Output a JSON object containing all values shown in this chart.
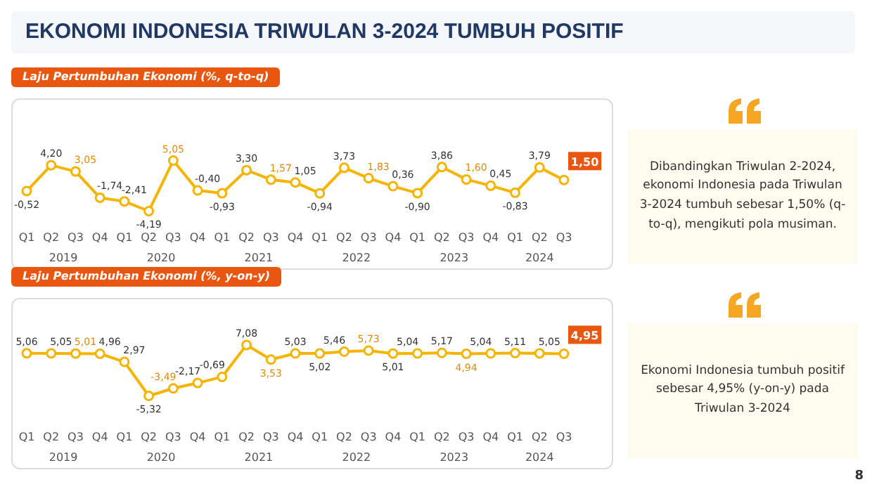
{
  "chart_data": [
    {
      "type": "line",
      "title": "EKONOMI INDONESIA TRIWULAN 3-2024 TUMBUH POSITIF",
      "subtitle": "Laju Pertumbuhan Ekonomi (%, q-to-q)",
      "categories": [
        "Q1",
        "Q2",
        "Q3",
        "Q4",
        "Q1",
        "Q2",
        "Q3",
        "Q4",
        "Q1",
        "Q2",
        "Q3",
        "Q4",
        "Q1",
        "Q2",
        "Q3",
        "Q4",
        "Q1",
        "Q2",
        "Q3",
        "Q4",
        "Q1",
        "Q2",
        "Q3"
      ],
      "series": [
        {
          "color": "#f5b400",
          "values": [
            -0.52,
            4.2,
            3.05,
            -1.74,
            -2.41,
            -4.19,
            5.05,
            -0.4,
            -0.93,
            3.3,
            1.57,
            1.05,
            -0.94,
            3.73,
            1.83,
            0.36,
            -0.9,
            3.86,
            1.6,
            0.45,
            -0.83,
            3.79,
            1.5
          ],
          "value_labels": [
            "-0,52",
            "4,20",
            "3,05",
            "-1,74",
            "-2,41",
            "-4,19",
            "5,05",
            "-0,40",
            "-0,93",
            "3,30",
            "1,57",
            "1,05",
            "-0,94",
            "3,73",
            "1,83",
            "0,36",
            "-0,90",
            "3,86",
            "1,60",
            "0,45",
            "-0,83",
            "3,79",
            "1,50"
          ]
        }
      ],
      "annotations": [
        "2019",
        "2020",
        "2021",
        "2022",
        "2023",
        "2024"
      ],
      "marker": "circle",
      "line_style": "solid",
      "legend": false
    },
    {
      "type": "other",
      "annotations": [
        "Dibandingkan Triwulan 2-2024, ekonomi Indonesia pada Triwulan 3-2024 tumbuh sebesar 1,50% (q-to-q), mengikuti pola musiman."
      ]
    },
    {
      "type": "line",
      "subtitle": "Laju Pertumbuhan Ekonomi (%, y-on-y)",
      "categories": [
        "Q1",
        "Q2",
        "Q3",
        "Q4",
        "Q1",
        "Q2",
        "Q3",
        "Q4",
        "Q1",
        "Q2",
        "Q3",
        "Q4",
        "Q1",
        "Q2",
        "Q3",
        "Q4",
        "Q1",
        "Q2",
        "Q3",
        "Q4",
        "Q1",
        "Q2",
        "Q3"
      ],
      "series": [
        {
          "color": "#f5b400",
          "values": [
            5.06,
            5.05,
            5.01,
            4.96,
            2.97,
            -5.32,
            -3.49,
            -2.17,
            -0.69,
            7.08,
            3.53,
            5.03,
            5.02,
            5.46,
            5.73,
            5.01,
            5.04,
            5.17,
            4.94,
            5.04,
            5.11,
            5.05,
            4.95
          ],
          "value_labels": [
            "5,06",
            "5,05",
            "5,01",
            "4,96",
            "2,97",
            "-5,32",
            "-3,49",
            "-2,17",
            "-0,69",
            "7,08",
            "3,53",
            "5,03",
            "5,02",
            "5,46",
            "5,73",
            "5,01",
            "5,04",
            "5,17",
            "4,94",
            "5,04",
            "5,11",
            "5,05",
            "4,95"
          ]
        }
      ],
      "annotations": [
        "2019",
        "2020",
        "2021",
        "2022",
        "2023",
        "2024"
      ],
      "marker": "circle",
      "line_style": "solid",
      "legend": false
    },
    {
      "type": "other",
      "annotations": [
        "Ekonomi Indonesia tumbuh positif sebesar 4,95% (y-on-y) pada Triwulan 3-2024",
        "8"
      ]
    }
  ]
}
